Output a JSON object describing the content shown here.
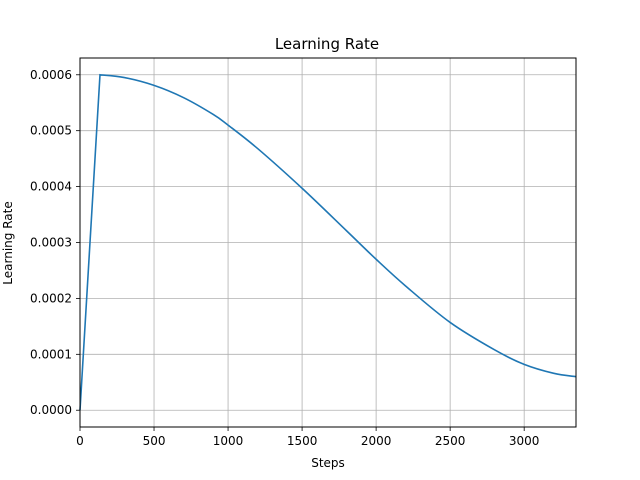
{
  "chart_data": {
    "type": "line",
    "title": "Learning Rate",
    "xlabel": "Steps",
    "ylabel": "Learning Rate",
    "xlim": [
      0,
      3350
    ],
    "ylim": [
      -3e-05,
      0.00063
    ],
    "xticks": [
      0,
      500,
      1000,
      1500,
      2000,
      2500,
      3000
    ],
    "xtick_labels": [
      "0",
      "500",
      "1000",
      "1500",
      "2000",
      "2500",
      "3000"
    ],
    "yticks": [
      0.0,
      0.0001,
      0.0002,
      0.0003,
      0.0004,
      0.0005,
      0.0006
    ],
    "ytick_labels": [
      "0.0000",
      "0.0001",
      "0.0002",
      "0.0003",
      "0.0004",
      "0.0005",
      "0.0006"
    ],
    "grid": true,
    "series": [
      {
        "color": "#1f77b4",
        "x": [
          0,
          135,
          300,
          500,
          700,
          900,
          1000,
          1200,
          1500,
          1800,
          2000,
          2200,
          2500,
          2800,
          3000,
          3200,
          3350
        ],
        "y": [
          0.0,
          0.0006,
          0.000595,
          0.000581,
          0.000559,
          0.000529,
          0.00051,
          0.000468,
          0.000397,
          0.000321,
          0.00027,
          0.000222,
          0.000157,
          0.000108,
          8.2e-05,
          6.6e-05,
          6e-05
        ]
      }
    ]
  }
}
